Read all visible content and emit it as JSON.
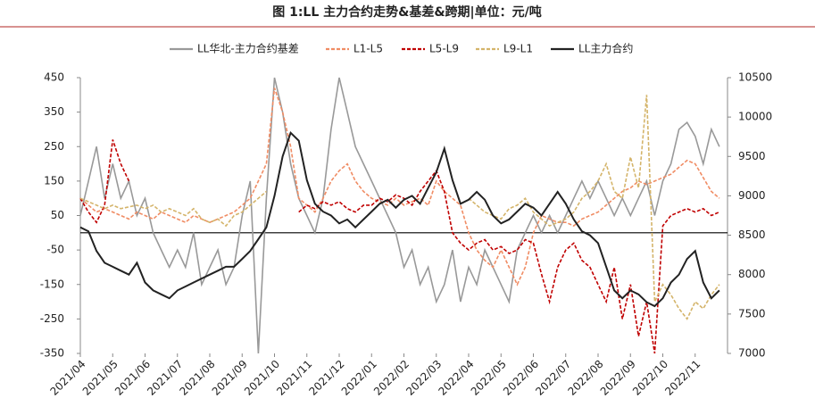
{
  "chart_data": {
    "type": "line",
    "title": "图 1:LL 主力合约走势&基差&跨期|单位：元/吨",
    "x": [
      0,
      0.25,
      0.5,
      0.75,
      1,
      1.25,
      1.5,
      1.75,
      2,
      2.25,
      2.5,
      2.75,
      3,
      3.25,
      3.5,
      3.75,
      4,
      4.25,
      4.5,
      4.75,
      5,
      5.25,
      5.5,
      5.75,
      6,
      6.25,
      6.5,
      6.75,
      7,
      7.25,
      7.5,
      7.75,
      8,
      8.25,
      8.5,
      8.75,
      9,
      9.25,
      9.5,
      9.75,
      10,
      10.25,
      10.5,
      10.75,
      11,
      11.25,
      11.5,
      11.75,
      12,
      12.25,
      12.5,
      12.75,
      13,
      13.25,
      13.5,
      13.75,
      14,
      14.25,
      14.5,
      14.75,
      15,
      15.25,
      15.5,
      15.75,
      16,
      16.25,
      16.5,
      16.75,
      17,
      17.25,
      17.5,
      17.75,
      18,
      18.25,
      18.5,
      18.75,
      19,
      19.25,
      19.5,
      19.75
    ],
    "xlim": [
      0,
      20
    ],
    "xticks": [
      {
        "value": 0,
        "label": "2021/04"
      },
      {
        "value": 1,
        "label": "2021/05"
      },
      {
        "value": 2,
        "label": "2021/06"
      },
      {
        "value": 3,
        "label": "2021/07"
      },
      {
        "value": 4,
        "label": "2021/08"
      },
      {
        "value": 5,
        "label": "2021/09"
      },
      {
        "value": 6,
        "label": "2021/10"
      },
      {
        "value": 7,
        "label": "2021/11"
      },
      {
        "value": 8,
        "label": "2021/12"
      },
      {
        "value": 9,
        "label": "2022/01"
      },
      {
        "value": 10,
        "label": "2022/02"
      },
      {
        "value": 11,
        "label": "2022/03"
      },
      {
        "value": 12,
        "label": "2022/04"
      },
      {
        "value": 13,
        "label": "2022/05"
      },
      {
        "value": 14,
        "label": "2022/06"
      },
      {
        "value": 15,
        "label": "2022/07"
      },
      {
        "value": 16,
        "label": "2022/08"
      },
      {
        "value": 17,
        "label": "2022/09"
      },
      {
        "value": 18,
        "label": "2022/10"
      },
      {
        "value": 19,
        "label": "2022/11"
      }
    ],
    "ylim": [
      -350,
      450
    ],
    "yticks": [
      -350,
      -250,
      -150,
      -50,
      50,
      150,
      250,
      350,
      450
    ],
    "y2lim": [
      7000,
      10500
    ],
    "y2ticks": [
      7000,
      7500,
      8000,
      8500,
      9000,
      9500,
      10000,
      10500
    ],
    "zero_line": true,
    "series": [
      {
        "name": "LL华北-主力合约基差",
        "color": "#999999",
        "dash": false,
        "axis": "y",
        "values": [
          50,
          150,
          250,
          100,
          200,
          100,
          150,
          50,
          100,
          0,
          -50,
          -100,
          -50,
          -100,
          0,
          -150,
          -100,
          -50,
          -150,
          -100,
          50,
          150,
          -350,
          100,
          450,
          350,
          200,
          100,
          50,
          0,
          100,
          300,
          450,
          350,
          250,
          200,
          150,
          100,
          50,
          0,
          -100,
          -50,
          -150,
          -100,
          -200,
          -150,
          -50,
          -200,
          -100,
          -150,
          -50,
          -100,
          -150,
          -200,
          -50,
          0,
          50,
          0,
          50,
          0,
          50,
          100,
          150,
          100,
          150,
          100,
          50,
          100,
          50,
          100,
          150,
          50,
          150,
          200,
          300,
          320,
          280,
          200,
          300,
          250
        ]
      },
      {
        "name": "L1-L5",
        "color": "#f08c64",
        "dash": true,
        "axis": "y",
        "values": [
          100,
          80,
          60,
          70,
          60,
          50,
          40,
          60,
          50,
          40,
          60,
          50,
          40,
          30,
          50,
          40,
          30,
          40,
          50,
          60,
          80,
          100,
          150,
          200,
          420,
          350,
          250,
          100,
          80,
          60,
          100,
          150,
          180,
          200,
          150,
          120,
          100,
          90,
          80,
          100,
          80,
          90,
          100,
          80,
          150,
          120,
          100,
          80,
          0,
          -50,
          -80,
          -100,
          -50,
          -100,
          -150,
          -100,
          0,
          50,
          40,
          30,
          30,
          20,
          40,
          50,
          60,
          80,
          100,
          120,
          130,
          150,
          140,
          150,
          160,
          170,
          190,
          210,
          200,
          160,
          120,
          100
        ]
      },
      {
        "name": "L5-L9",
        "color": "#c00000",
        "dash": true,
        "axis": "y",
        "values": [
          100,
          60,
          30,
          80,
          270,
          200,
          150,
          null,
          null,
          null,
          null,
          null,
          null,
          null,
          null,
          null,
          null,
          null,
          null,
          null,
          null,
          null,
          null,
          null,
          null,
          null,
          null,
          60,
          80,
          70,
          90,
          80,
          90,
          70,
          60,
          80,
          80,
          100,
          90,
          110,
          100,
          80,
          120,
          150,
          180,
          120,
          0,
          -30,
          -50,
          -30,
          -20,
          -50,
          -40,
          -60,
          -50,
          -20,
          -30,
          -120,
          -200,
          -100,
          -50,
          -30,
          -80,
          -100,
          -150,
          -200,
          -100,
          -250,
          -150,
          -300,
          -200,
          -350,
          20,
          50,
          60,
          70,
          60,
          70,
          50,
          60
        ]
      },
      {
        "name": "L9-L1",
        "color": "#d4b46a",
        "dash": true,
        "axis": "y",
        "values": [
          100,
          90,
          80,
          70,
          80,
          70,
          75,
          80,
          70,
          80,
          60,
          70,
          60,
          50,
          70,
          40,
          30,
          40,
          20,
          50,
          60,
          80,
          100,
          120,
          null,
          null,
          null,
          null,
          null,
          null,
          null,
          null,
          null,
          null,
          null,
          null,
          null,
          null,
          null,
          null,
          null,
          null,
          null,
          null,
          null,
          null,
          null,
          null,
          100,
          80,
          60,
          50,
          40,
          70,
          80,
          100,
          60,
          40,
          20,
          30,
          40,
          60,
          100,
          120,
          150,
          200,
          120,
          100,
          220,
          130,
          400,
          -200,
          -150,
          -180,
          -220,
          -250,
          -200,
          -220,
          -180,
          -150
        ]
      },
      {
        "name": "LL主力合约",
        "color": "#222222",
        "dash": false,
        "axis": "y2",
        "values": [
          8600,
          8550,
          8300,
          8150,
          8100,
          8050,
          8000,
          8150,
          7900,
          7800,
          7750,
          7700,
          7800,
          7850,
          7900,
          7950,
          8000,
          8050,
          8100,
          8100,
          8200,
          8300,
          8450,
          8600,
          9000,
          9500,
          9800,
          9700,
          9200,
          8900,
          8800,
          8750,
          8650,
          8700,
          8600,
          8700,
          8800,
          8900,
          8950,
          8850,
          8950,
          9000,
          8900,
          9100,
          9300,
          9600,
          9200,
          8900,
          8950,
          9050,
          8950,
          8750,
          8650,
          8700,
          8800,
          8900,
          8850,
          8750,
          8900,
          9050,
          8900,
          8700,
          8550,
          8500,
          8400,
          8100,
          7800,
          7700,
          7800,
          7750,
          7650,
          7600,
          7700,
          7900,
          8000,
          8200,
          8300,
          7900,
          7700,
          7800
        ]
      }
    ]
  }
}
